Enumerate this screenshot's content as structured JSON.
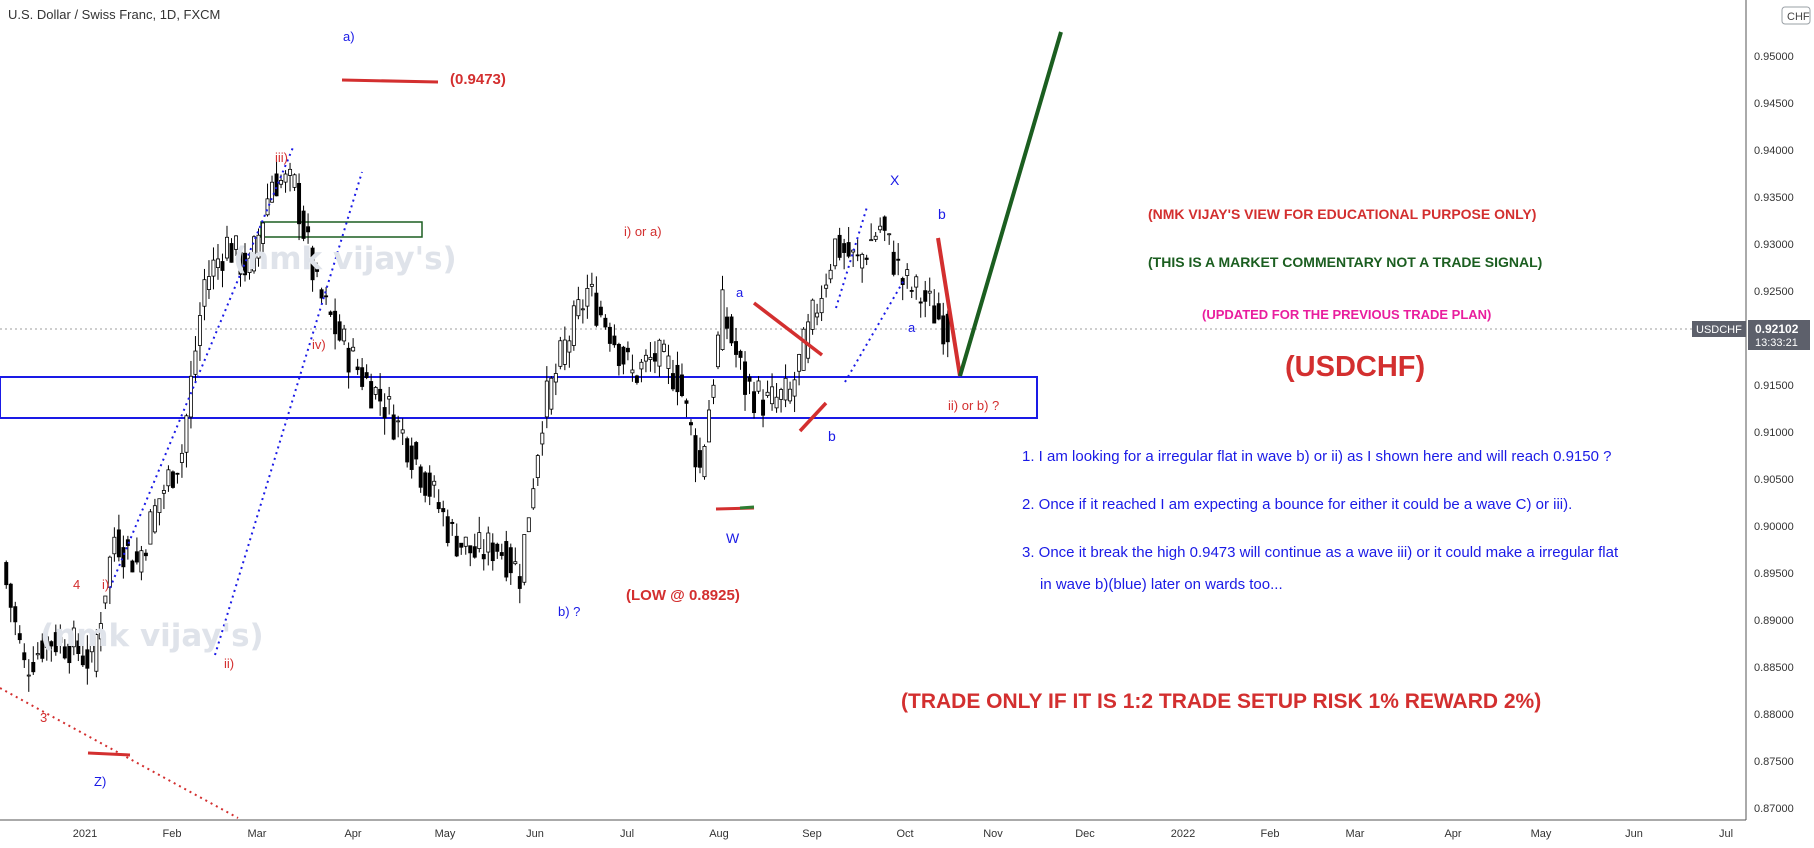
{
  "header": {
    "symbol_title": "U.S. Dollar / Swiss Franc, 1D, FXCM"
  },
  "colors": {
    "bull": "#ffffff",
    "bear": "#000000",
    "red": "#d32f2f",
    "blue": "#1a1ae6",
    "green": "#1b5e20",
    "magenta": "#e91e9e"
  },
  "axis": {
    "currency": "CHF",
    "y_ticks": [
      "0.95000",
      "0.94500",
      "0.94000",
      "0.93500",
      "0.93000",
      "0.92500",
      "0.92000",
      "0.91500",
      "0.91000",
      "0.90500",
      "0.90000",
      "0.89500",
      "0.89000",
      "0.88500",
      "0.88000",
      "0.87500",
      "0.87000"
    ],
    "x_ticks": [
      "2021",
      "Feb",
      "Mar",
      "Apr",
      "May",
      "Jun",
      "Jul",
      "Aug",
      "Sep",
      "Oct",
      "Nov",
      "Dec",
      "2022",
      "Feb",
      "Mar",
      "Apr",
      "May",
      "Jun",
      "Jul"
    ]
  },
  "price_tag": {
    "symbol": "USDCHF",
    "price": "0.92102",
    "countdown": "13:33:21"
  },
  "wave_labels": [
    {
      "text": "a)",
      "color": "blue"
    },
    {
      "text": "(0.9473)",
      "color": "red"
    },
    {
      "text": "iii)",
      "color": "red"
    },
    {
      "text": "iv)",
      "color": "red"
    },
    {
      "text": "i) or a)",
      "color": "red"
    },
    {
      "text": "a",
      "color": "blue"
    },
    {
      "text": "X",
      "color": "blue"
    },
    {
      "text": "b",
      "color": "blue"
    },
    {
      "text": "a",
      "color": "blue"
    },
    {
      "text": "b",
      "color": "blue"
    },
    {
      "text": "ii) or b) ?",
      "color": "red"
    },
    {
      "text": "W",
      "color": "blue"
    },
    {
      "text": "(LOW @ 0.8925)",
      "color": "red"
    },
    {
      "text": "b) ?",
      "color": "blue"
    },
    {
      "text": "4",
      "color": "red"
    },
    {
      "text": "i)",
      "color": "red"
    },
    {
      "text": "ii)",
      "color": "red"
    },
    {
      "text": "3",
      "color": "red"
    },
    {
      "text": "Z)",
      "color": "blue"
    }
  ],
  "watermarks": [
    "(nmk vijay's)",
    "(nmk vijay's)"
  ],
  "notes": {
    "disclaimer": "(NMK VIJAY'S VIEW FOR EDUCATIONAL PURPOSE ONLY)",
    "commentary": "(THIS IS A MARKET COMMENTARY NOT A TRADE SIGNAL)",
    "updated": "(UPDATED FOR THE PREVIOUS TRADE PLAN)",
    "ticker": "(USDCHF)",
    "point1": "1. I am looking for a irregular flat in wave b) or ii) as I shown here and will reach 0.9150 ?",
    "point2": "2. Once if it reached I am expecting a bounce for either it could be a wave C) or iii).",
    "point3a": "3. Once it break the high 0.9473 will continue as a wave iii) or it could make a irregular flat",
    "point3b": "in wave b)(blue) later on wards too...",
    "trade_rule": "(TRADE ONLY IF IT IS 1:2 TRADE SETUP RISK 1% REWARD 2%)"
  },
  "chart_data": {
    "type": "candlestick",
    "title": "U.S. Dollar / Swiss Franc, 1D, FXCM",
    "timeframe": "1D",
    "ylim": [
      0.8685,
      0.9555
    ],
    "x": [
      "2021-01-04",
      "2021-01-11",
      "2021-01-18",
      "2021-01-25",
      "2021-02-01",
      "2021-02-08",
      "2021-02-15",
      "2021-02-22",
      "2021-03-01",
      "2021-03-08",
      "2021-03-15",
      "2021-03-22",
      "2021-03-29",
      "2021-04-05",
      "2021-04-12",
      "2021-04-19",
      "2021-04-26",
      "2021-05-03",
      "2021-05-10",
      "2021-05-17",
      "2021-05-24",
      "2021-05-31",
      "2021-06-07",
      "2021-06-14",
      "2021-06-21",
      "2021-06-28",
      "2021-07-05",
      "2021-07-12",
      "2021-07-19",
      "2021-07-26",
      "2021-08-02",
      "2021-08-09",
      "2021-08-16",
      "2021-08-23",
      "2021-08-30",
      "2021-09-06",
      "2021-09-13",
      "2021-09-20",
      "2021-09-27",
      "2021-10-04",
      "2021-10-11",
      "2021-10-18"
    ],
    "close": [
      0.885,
      0.888,
      0.8875,
      0.8855,
      0.899,
      0.896,
      0.903,
      0.908,
      0.926,
      0.93,
      0.927,
      0.937,
      0.936,
      0.925,
      0.92,
      0.916,
      0.913,
      0.909,
      0.904,
      0.899,
      0.897,
      0.898,
      0.895,
      0.912,
      0.919,
      0.925,
      0.921,
      0.916,
      0.918,
      0.916,
      0.906,
      0.923,
      0.915,
      0.913,
      0.914,
      0.922,
      0.93,
      0.928,
      0.932,
      0.926,
      0.924,
      0.921
    ],
    "markers": {
      "high": 0.9473,
      "low": 0.8925,
      "current_price": 0.92102
    },
    "zones": [
      {
        "from": 0.9115,
        "to": 0.916,
        "color": "blue"
      },
      {
        "from": 0.9315,
        "to": 0.933,
        "color": "green"
      }
    ],
    "projection": [
      {
        "date": "2021-10-22",
        "price": 0.916
      },
      {
        "date": "2021-11-26",
        "price": 0.952
      }
    ]
  }
}
